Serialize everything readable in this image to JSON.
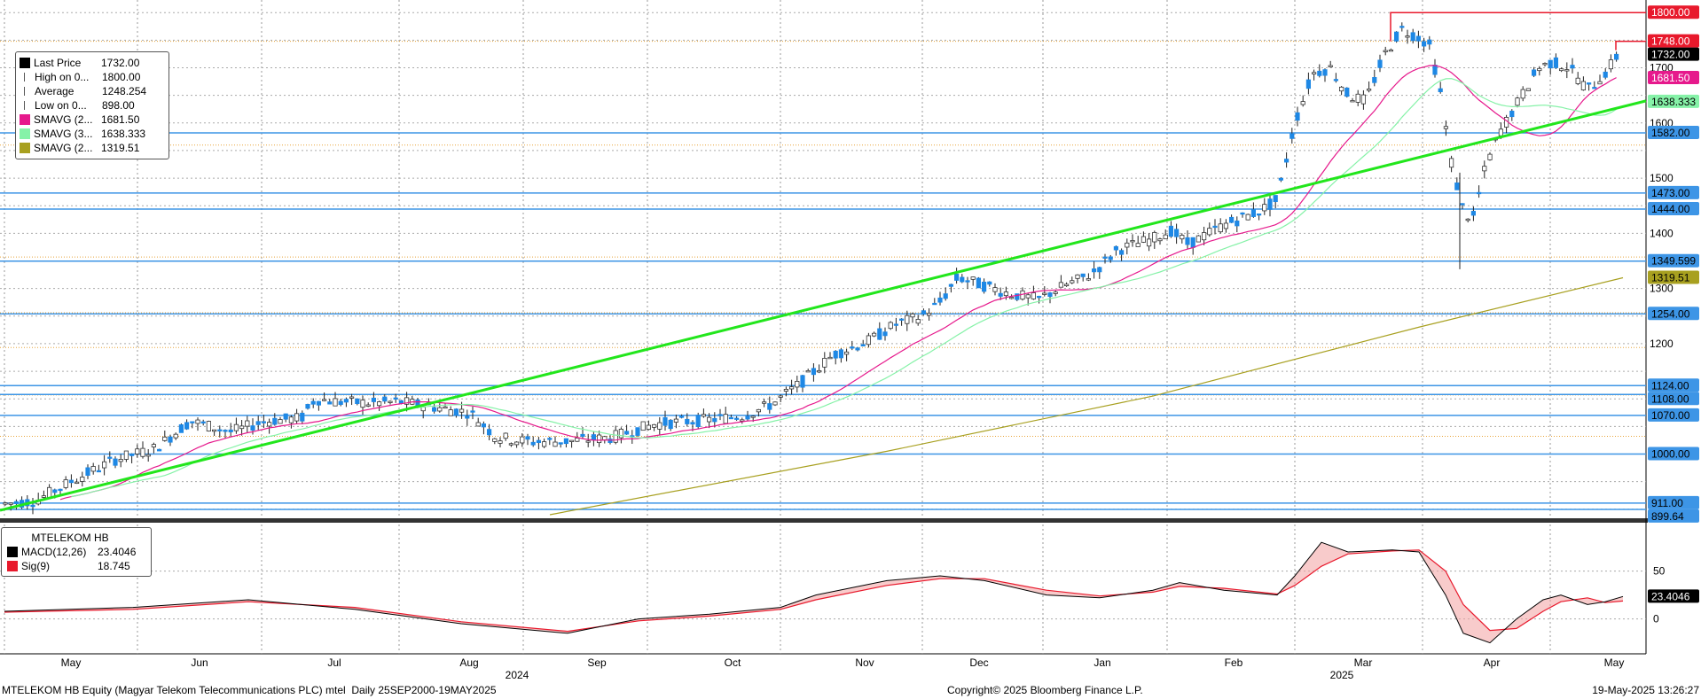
{
  "chart_data": {
    "type": "candlestick",
    "security": "MTELEKOM HB Equity (Magyar Telekom Telecommunications PLC) mtel",
    "period": "Daily 25SEP2000-19MAY2025",
    "copyright": "Copyright© 2025 Bloomberg Finance L.P.",
    "timestamp": "19-May-2025 13:26:27",
    "x_month_labels": [
      "May",
      "Jun",
      "Jul",
      "Aug",
      "Sep",
      "Oct",
      "Nov",
      "Dec",
      "Jan",
      "Feb",
      "Mar",
      "Apr",
      "May"
    ],
    "x_year_labels": [
      "2024",
      "2025"
    ],
    "price_axis": {
      "ylim": [
        890,
        1810
      ],
      "ticks": [
        1200,
        1300,
        1400,
        1500,
        1600,
        1700
      ],
      "grid": true
    },
    "legend": [
      {
        "label": "Last Price",
        "value": "1732.00",
        "color": "#000000",
        "icon": "square"
      },
      {
        "label": "High on 0...",
        "value": "1800.00",
        "color": "#555555",
        "icon": "high-marker"
      },
      {
        "label": "Average",
        "value": "1248.254",
        "color": "#555555",
        "icon": "average-marker"
      },
      {
        "label": "Low on 0...",
        "value": "898.00",
        "color": "#555555",
        "icon": "low-marker"
      },
      {
        "label": "SMAVG (2...",
        "value": "1681.50",
        "color": "#e6198c",
        "icon": "square"
      },
      {
        "label": "SMAVG (3...",
        "value": "1638.333",
        "color": "#86f2a8",
        "icon": "square"
      },
      {
        "label": "SMAVG (2...",
        "value": "1319.51",
        "color": "#a8a020",
        "icon": "square"
      }
    ],
    "right_labels": [
      {
        "text": "1800.00",
        "value": 1800,
        "bg": "#e8192c",
        "fg": "#ffffff"
      },
      {
        "text": "1748.00",
        "value": 1748,
        "bg": "#e8192c",
        "fg": "#ffffff"
      },
      {
        "text": "1732.00",
        "value": 1732,
        "bg": "#000000",
        "fg": "#ffffff"
      },
      {
        "text": "1681.50",
        "value": 1681.5,
        "bg": "#e6198c",
        "fg": "#ffffff"
      },
      {
        "text": "1638.333",
        "value": 1638.333,
        "bg": "#86f2a8",
        "fg": "#000000"
      },
      {
        "text": "1582.00",
        "value": 1582,
        "bg": "#3d95e6",
        "fg": "#000000"
      },
      {
        "text": "1473.00",
        "value": 1473,
        "bg": "#3d95e6",
        "fg": "#000000"
      },
      {
        "text": "1444.00",
        "value": 1444,
        "bg": "#3d95e6",
        "fg": "#000000"
      },
      {
        "text": "1349.599",
        "value": 1349.599,
        "bg": "#3d95e6",
        "fg": "#000000"
      },
      {
        "text": "1319.51",
        "value": 1319.51,
        "bg": "#a8a020",
        "fg": "#000000"
      },
      {
        "text": "1254.00",
        "value": 1254,
        "bg": "#3d95e6",
        "fg": "#000000"
      },
      {
        "text": "1124.00",
        "value": 1124,
        "bg": "#3d95e6",
        "fg": "#000000"
      },
      {
        "text": "1108.00",
        "value": 1108,
        "bg": "#3d95e6",
        "fg": "#000000"
      },
      {
        "text": "1070.00",
        "value": 1070,
        "bg": "#3d95e6",
        "fg": "#000000"
      },
      {
        "text": "1000.00",
        "value": 1000,
        "bg": "#3d95e6",
        "fg": "#000000"
      },
      {
        "text": "911.00",
        "value": 911,
        "bg": "#3d95e6",
        "fg": "#000000"
      },
      {
        "text": "899.64",
        "value": 899.64,
        "bg": "#3d95e6",
        "fg": "#000000"
      }
    ],
    "horizontal_levels": [
      1582,
      1473,
      1444,
      1349.599,
      1254,
      1124,
      1108,
      1070,
      1000,
      911,
      899.64
    ],
    "high_level": 1800,
    "macd_panel": {
      "title": "MTELEKOM HB",
      "series": [
        {
          "name": "MACD(12,26)",
          "value": "23.4046",
          "color": "#000000"
        },
        {
          "name": "Sig(9)",
          "value": "18.745",
          "color": "#e8192c"
        }
      ],
      "ticks": [
        50,
        0
      ],
      "ylim": [
        -30,
        95
      ],
      "last_label": "23.4046"
    }
  }
}
